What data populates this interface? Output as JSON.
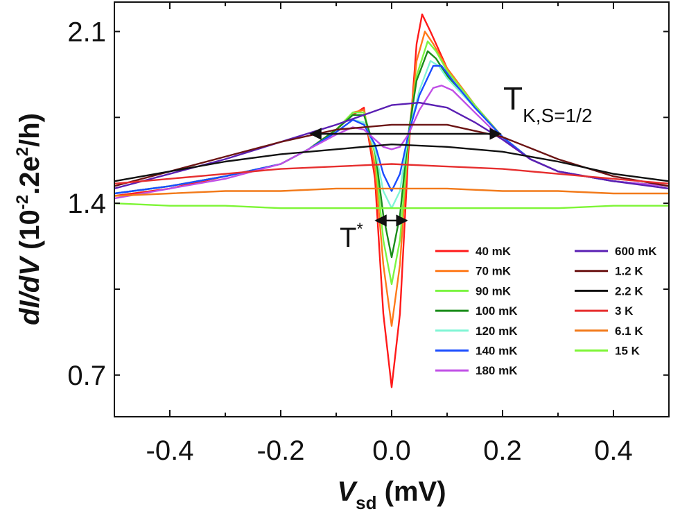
{
  "chart_data": {
    "type": "line",
    "xlabel_main": "V",
    "xlabel_sub": "sd",
    "xlabel_unit": " (mV)",
    "ylabel_main": "dI/dV",
    "ylabel_unit": " (10",
    "ylabel_exp": "-2",
    "ylabel_tail": ".2e",
    "ylabel_exp2": "2",
    "ylabel_end": "/h)",
    "xlim": [
      -0.5,
      0.5
    ],
    "ylim": [
      0.53,
      2.22
    ],
    "xticks": [
      {
        "v": -0.4,
        "label": "-0.4"
      },
      {
        "v": -0.2,
        "label": "-0.2"
      },
      {
        "v": 0.0,
        "label": "0.0"
      },
      {
        "v": 0.2,
        "label": "0.2"
      },
      {
        "v": 0.4,
        "label": "0.4"
      }
    ],
    "yticks": [
      {
        "v": 0.7,
        "label": "0.7"
      },
      {
        "v": 1.4,
        "label": "1.4"
      },
      {
        "v": 2.1,
        "label": "2.1"
      }
    ],
    "annotations": {
      "tk_main": "T",
      "tk_sub": "K,S=1/2",
      "tstar_main": "T",
      "tstar_sup": "*"
    },
    "series": [
      {
        "name": "40 mK",
        "color": "#ff1a1a",
        "x": [
          -0.5,
          -0.4,
          -0.3,
          -0.2,
          -0.15,
          -0.1,
          -0.07,
          -0.05,
          -0.03,
          -0.015,
          0,
          0.015,
          0.03,
          0.045,
          0.055,
          0.07,
          0.1,
          0.15,
          0.2,
          0.25,
          0.3,
          0.4,
          0.5
        ],
        "y": [
          1.43,
          1.46,
          1.51,
          1.56,
          1.62,
          1.7,
          1.76,
          1.79,
          1.5,
          0.95,
          0.65,
          0.95,
          1.6,
          2.05,
          2.17,
          2.1,
          1.95,
          1.8,
          1.67,
          1.58,
          1.53,
          1.49,
          1.47
        ]
      },
      {
        "name": "70 mK",
        "color": "#ff7a1a",
        "x": [
          -0.5,
          -0.4,
          -0.3,
          -0.2,
          -0.15,
          -0.1,
          -0.07,
          -0.05,
          -0.03,
          -0.015,
          0,
          0.015,
          0.03,
          0.045,
          0.06,
          0.075,
          0.1,
          0.15,
          0.2,
          0.25,
          0.3,
          0.4,
          0.5
        ],
        "y": [
          1.44,
          1.47,
          1.51,
          1.56,
          1.62,
          1.7,
          1.77,
          1.78,
          1.55,
          1.15,
          0.9,
          1.15,
          1.65,
          1.98,
          2.1,
          2.05,
          1.95,
          1.8,
          1.67,
          1.58,
          1.53,
          1.49,
          1.47
        ]
      },
      {
        "name": "90 mK",
        "color": "#7cf542",
        "x": [
          -0.5,
          -0.4,
          -0.3,
          -0.2,
          -0.15,
          -0.1,
          -0.07,
          -0.05,
          -0.03,
          -0.015,
          0,
          0.015,
          0.03,
          0.045,
          0.065,
          0.08,
          0.1,
          0.15,
          0.2,
          0.25,
          0.3,
          0.4,
          0.5
        ],
        "y": [
          1.44,
          1.47,
          1.51,
          1.56,
          1.62,
          1.7,
          1.77,
          1.77,
          1.6,
          1.25,
          1.07,
          1.25,
          1.65,
          1.92,
          2.06,
          2.02,
          1.94,
          1.8,
          1.67,
          1.58,
          1.53,
          1.49,
          1.47
        ]
      },
      {
        "name": "100 mK",
        "color": "#1a8c1a",
        "x": [
          -0.5,
          -0.4,
          -0.3,
          -0.2,
          -0.15,
          -0.1,
          -0.07,
          -0.05,
          -0.03,
          -0.015,
          0,
          0.015,
          0.03,
          0.045,
          0.065,
          0.08,
          0.1,
          0.15,
          0.2,
          0.25,
          0.3,
          0.4,
          0.5
        ],
        "y": [
          1.44,
          1.47,
          1.51,
          1.56,
          1.62,
          1.7,
          1.76,
          1.76,
          1.62,
          1.35,
          1.18,
          1.35,
          1.68,
          1.9,
          2.02,
          1.99,
          1.92,
          1.79,
          1.67,
          1.58,
          1.53,
          1.49,
          1.47
        ]
      },
      {
        "name": "120 mK",
        "color": "#80f5d5",
        "x": [
          -0.5,
          -0.4,
          -0.3,
          -0.2,
          -0.15,
          -0.1,
          -0.07,
          -0.05,
          -0.03,
          -0.015,
          0,
          0.015,
          0.03,
          0.05,
          0.07,
          0.085,
          0.1,
          0.15,
          0.2,
          0.25,
          0.3,
          0.4,
          0.5
        ],
        "y": [
          1.44,
          1.47,
          1.51,
          1.56,
          1.62,
          1.69,
          1.74,
          1.73,
          1.62,
          1.45,
          1.38,
          1.45,
          1.68,
          1.86,
          1.98,
          1.96,
          1.91,
          1.79,
          1.67,
          1.58,
          1.53,
          1.49,
          1.47
        ]
      },
      {
        "name": "140 mK",
        "color": "#1a4cff",
        "x": [
          -0.5,
          -0.4,
          -0.3,
          -0.2,
          -0.15,
          -0.1,
          -0.07,
          -0.05,
          -0.03,
          -0.015,
          0,
          0.015,
          0.03,
          0.05,
          0.075,
          0.09,
          0.11,
          0.15,
          0.2,
          0.25,
          0.3,
          0.4,
          0.5
        ],
        "y": [
          1.44,
          1.47,
          1.51,
          1.56,
          1.62,
          1.69,
          1.74,
          1.72,
          1.64,
          1.52,
          1.45,
          1.52,
          1.68,
          1.84,
          1.96,
          1.96,
          1.9,
          1.79,
          1.67,
          1.58,
          1.53,
          1.49,
          1.47
        ]
      },
      {
        "name": "180 mK",
        "color": "#c04fe6",
        "x": [
          -0.5,
          -0.4,
          -0.3,
          -0.2,
          -0.15,
          -0.1,
          -0.07,
          -0.05,
          -0.03,
          -0.015,
          0,
          0.015,
          0.03,
          0.05,
          0.075,
          0.09,
          0.11,
          0.15,
          0.2,
          0.25,
          0.3,
          0.4,
          0.5
        ],
        "y": [
          1.42,
          1.46,
          1.5,
          1.56,
          1.62,
          1.68,
          1.71,
          1.7,
          1.66,
          1.63,
          1.62,
          1.63,
          1.68,
          1.78,
          1.87,
          1.88,
          1.86,
          1.77,
          1.66,
          1.58,
          1.53,
          1.49,
          1.47
        ]
      },
      {
        "name": "600 mK",
        "color": "#5a1fb3",
        "x": [
          -0.5,
          -0.4,
          -0.3,
          -0.2,
          -0.1,
          -0.05,
          0,
          0.05,
          0.1,
          0.15,
          0.2,
          0.25,
          0.3,
          0.4,
          0.5
        ],
        "y": [
          1.46,
          1.52,
          1.58,
          1.65,
          1.72,
          1.76,
          1.8,
          1.81,
          1.79,
          1.73,
          1.66,
          1.58,
          1.53,
          1.49,
          1.46
        ]
      },
      {
        "name": "1.2 K",
        "color": "#6b1414",
        "x": [
          -0.5,
          -0.4,
          -0.3,
          -0.2,
          -0.1,
          0,
          0.1,
          0.2,
          0.3,
          0.4,
          0.5
        ],
        "y": [
          1.47,
          1.53,
          1.59,
          1.65,
          1.7,
          1.72,
          1.72,
          1.67,
          1.58,
          1.51,
          1.47
        ]
      },
      {
        "name": "2.2 K",
        "color": "#111111",
        "x": [
          -0.5,
          -0.4,
          -0.3,
          -0.2,
          -0.1,
          0,
          0.1,
          0.2,
          0.3,
          0.4,
          0.5
        ],
        "y": [
          1.49,
          1.53,
          1.57,
          1.6,
          1.62,
          1.64,
          1.63,
          1.61,
          1.57,
          1.52,
          1.49
        ]
      },
      {
        "name": "3 K",
        "color": "#e62e2e",
        "x": [
          -0.5,
          -0.4,
          -0.3,
          -0.2,
          -0.1,
          0,
          0.1,
          0.2,
          0.3,
          0.4,
          0.5
        ],
        "y": [
          1.48,
          1.5,
          1.52,
          1.54,
          1.55,
          1.56,
          1.55,
          1.54,
          1.52,
          1.5,
          1.48
        ]
      },
      {
        "name": "6.1 K",
        "color": "#f27a1a",
        "x": [
          -0.5,
          -0.4,
          -0.3,
          -0.2,
          -0.1,
          0,
          0.1,
          0.2,
          0.3,
          0.4,
          0.5
        ],
        "y": [
          1.43,
          1.44,
          1.45,
          1.45,
          1.46,
          1.46,
          1.46,
          1.45,
          1.45,
          1.44,
          1.44
        ]
      },
      {
        "name": "15 K",
        "color": "#7df535",
        "x": [
          -0.5,
          -0.4,
          -0.3,
          -0.2,
          -0.1,
          0,
          0.1,
          0.2,
          0.3,
          0.4,
          0.5
        ],
        "y": [
          1.4,
          1.39,
          1.39,
          1.38,
          1.38,
          1.38,
          1.38,
          1.38,
          1.38,
          1.39,
          1.39
        ]
      }
    ]
  }
}
